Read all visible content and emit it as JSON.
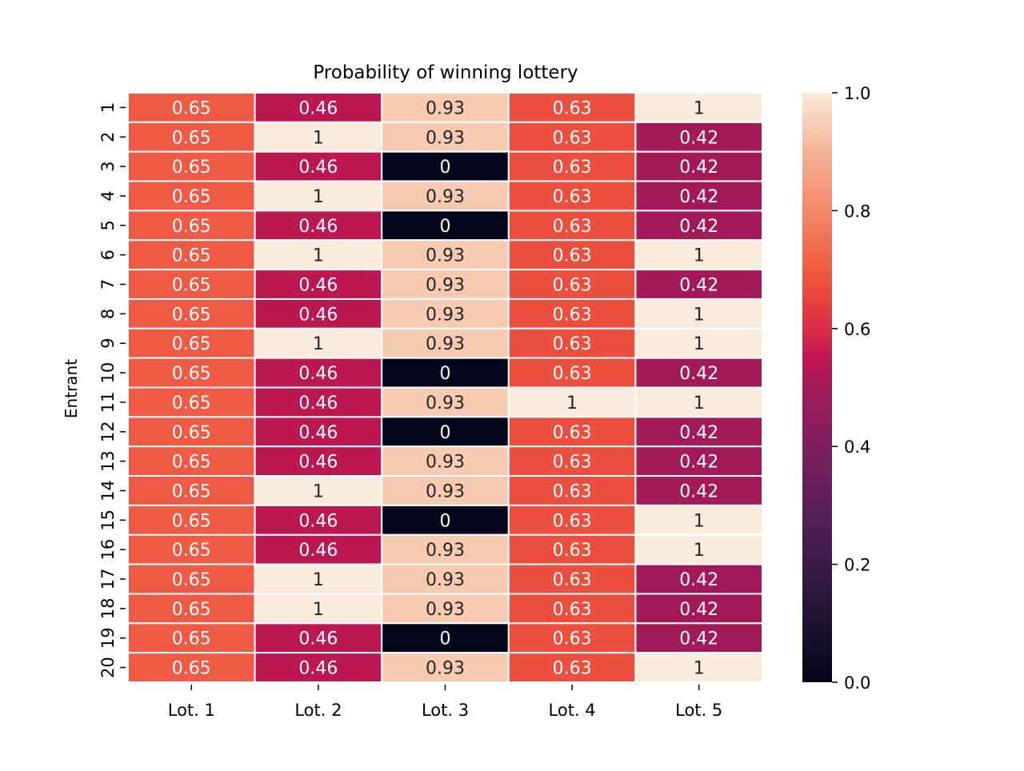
{
  "chart_data": {
    "type": "heatmap",
    "title": "Probability of winning lottery",
    "xlabel": "",
    "ylabel": "Entrant",
    "columns": [
      "Lot. 1",
      "Lot. 2",
      "Lot. 3",
      "Lot. 4",
      "Lot. 5"
    ],
    "rows": [
      "1",
      "2",
      "3",
      "4",
      "5",
      "6",
      "7",
      "8",
      "9",
      "10",
      "11",
      "12",
      "13",
      "14",
      "15",
      "16",
      "17",
      "18",
      "19",
      "20"
    ],
    "values": [
      [
        0.65,
        0.46,
        0.93,
        0.63,
        1
      ],
      [
        0.65,
        1,
        0.93,
        0.63,
        0.42
      ],
      [
        0.65,
        0.46,
        0,
        0.63,
        0.42
      ],
      [
        0.65,
        1,
        0.93,
        0.63,
        0.42
      ],
      [
        0.65,
        0.46,
        0,
        0.63,
        0.42
      ],
      [
        0.65,
        1,
        0.93,
        0.63,
        1
      ],
      [
        0.65,
        0.46,
        0.93,
        0.63,
        0.42
      ],
      [
        0.65,
        0.46,
        0.93,
        0.63,
        1
      ],
      [
        0.65,
        1,
        0.93,
        0.63,
        1
      ],
      [
        0.65,
        0.46,
        0,
        0.63,
        0.42
      ],
      [
        0.65,
        0.46,
        0.93,
        1,
        1
      ],
      [
        0.65,
        0.46,
        0,
        0.63,
        0.42
      ],
      [
        0.65,
        0.46,
        0.93,
        0.63,
        0.42
      ],
      [
        0.65,
        1,
        0.93,
        0.63,
        0.42
      ],
      [
        0.65,
        0.46,
        0,
        0.63,
        1
      ],
      [
        0.65,
        0.46,
        0.93,
        0.63,
        1
      ],
      [
        0.65,
        1,
        0.93,
        0.63,
        0.42
      ],
      [
        0.65,
        1,
        0.93,
        0.63,
        0.42
      ],
      [
        0.65,
        0.46,
        0,
        0.63,
        0.42
      ],
      [
        0.65,
        0.46,
        0.93,
        0.63,
        1
      ]
    ],
    "annotations": true,
    "colormap": "rocket",
    "colorbar": {
      "range": [
        0.0,
        1.0
      ],
      "ticks": [
        "0.0",
        "0.2",
        "0.4",
        "0.6",
        "0.8",
        "1.0"
      ],
      "placement": "right"
    },
    "grid": false
  }
}
